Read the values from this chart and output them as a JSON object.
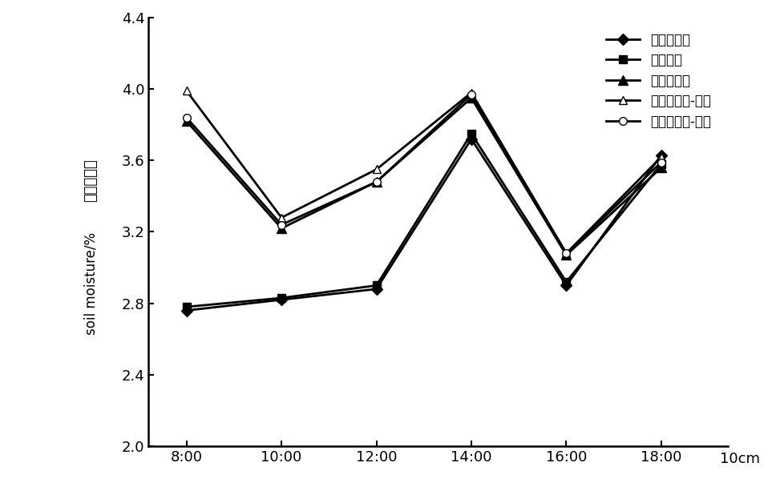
{
  "x_labels": [
    "8:00",
    "10:00",
    "12:00",
    "14:00",
    "16:00",
    "18:00"
  ],
  "x_positions": [
    0,
    1,
    2,
    3,
    4,
    5
  ],
  "series": [
    {
      "label": "水平阶整地",
      "values": [
        2.76,
        2.82,
        2.88,
        3.72,
        2.9,
        3.63
      ],
      "marker": "D",
      "marker_size": 7,
      "color": "#000000",
      "linestyle": "-",
      "linewidth": 2.0,
      "markerfacecolor": "#000000"
    },
    {
      "label": "全面整地",
      "values": [
        2.78,
        2.83,
        2.9,
        3.75,
        2.92,
        3.58
      ],
      "marker": "s",
      "marker_size": 7,
      "color": "#000000",
      "linestyle": "-",
      "linewidth": 2.0,
      "markerfacecolor": "#000000"
    },
    {
      "label": "鱼鳞坑整地",
      "values": [
        3.82,
        3.22,
        3.48,
        3.95,
        3.07,
        3.56
      ],
      "marker": "^",
      "marker_size": 8,
      "color": "#000000",
      "linestyle": "-",
      "linewidth": 2.0,
      "markerfacecolor": "#000000"
    },
    {
      "label": "保护性整地-覆膜",
      "values": [
        3.99,
        3.28,
        3.55,
        3.98,
        3.08,
        3.62
      ],
      "marker": "^",
      "marker_size": 7,
      "color": "#000000",
      "linestyle": "-",
      "linewidth": 2.0,
      "markerfacecolor": "white"
    },
    {
      "label": "保护性整地-覆草",
      "values": [
        3.84,
        3.24,
        3.48,
        3.97,
        3.08,
        3.59
      ],
      "marker": "o",
      "marker_size": 7,
      "color": "#000000",
      "linestyle": "-",
      "linewidth": 2.0,
      "markerfacecolor": "white"
    }
  ],
  "ylabel_cn": "土壤含水率",
  "ylabel_en": "soil moisture/%",
  "xlabel_suffix": "10cm",
  "ylim": [
    2.0,
    4.4
  ],
  "yticks": [
    2.0,
    2.4,
    2.8,
    3.2,
    3.6,
    4.0,
    4.4
  ],
  "background_color": "#ffffff",
  "tick_fontsize": 13,
  "legend_fontsize": 12,
  "ylabel_fontsize": 13
}
